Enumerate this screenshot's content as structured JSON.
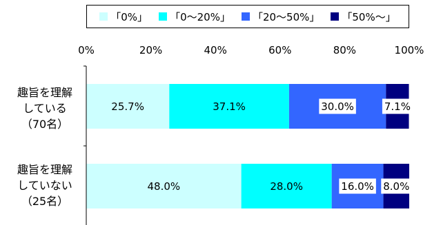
{
  "chart_data": {
    "type": "bar",
    "orientation": "horizontal",
    "stacked": true,
    "percent": true,
    "x_ticks": [
      "0%",
      "20%",
      "40%",
      "60%",
      "80%",
      "100%"
    ],
    "xlim": [
      0,
      100
    ],
    "categories": [
      {
        "lines": [
          "趣旨を理解",
          "している",
          "（70名）"
        ]
      },
      {
        "lines": [
          "趣旨を理解",
          "していない",
          "（25名）"
        ]
      }
    ],
    "series": [
      {
        "name": "「0%」",
        "color": "#ccffff",
        "values": [
          25.7,
          48.0
        ],
        "labels": [
          "25.7%",
          "48.0%"
        ]
      },
      {
        "name": "「0～20%」",
        "color": "#00ffff",
        "values": [
          37.1,
          28.0
        ],
        "labels": [
          "37.1%",
          "28.0%"
        ]
      },
      {
        "name": "「20～50%」",
        "color": "#3366ff",
        "values": [
          30.0,
          16.0
        ],
        "labels": [
          "30.0%",
          "16.0%"
        ]
      },
      {
        "name": "「50%～」",
        "color": "#000080",
        "values": [
          7.1,
          8.0
        ],
        "labels": [
          "7.1%",
          "8.0%"
        ]
      }
    ],
    "legend": "top"
  }
}
